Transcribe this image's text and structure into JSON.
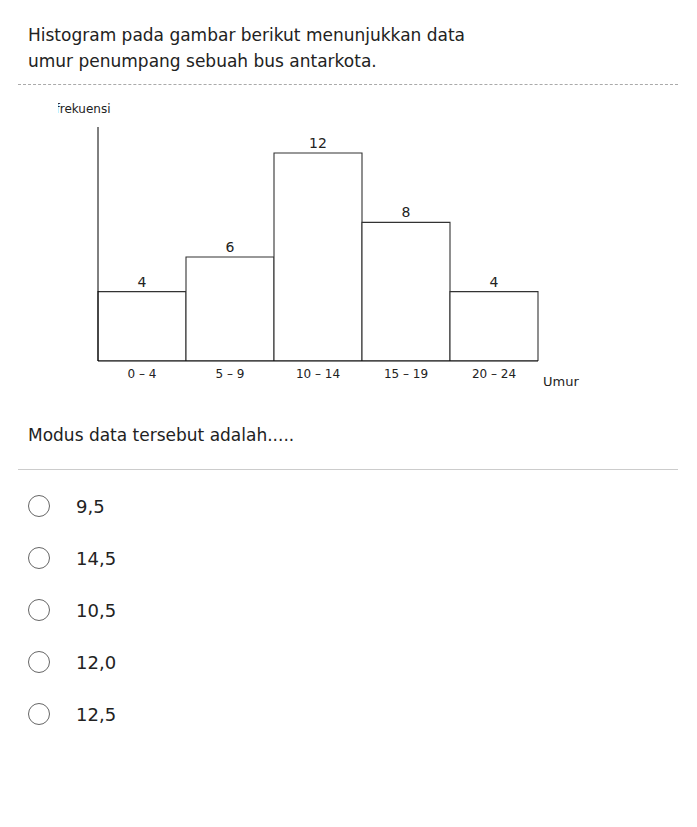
{
  "chart_data": {
    "type": "bar",
    "title": "Histogram pada gambar berikut menunjukkan data",
    "subtitle": "umur penumpang sebuah bus antarkota.",
    "categories": [
      "0 – 4",
      "5 – 9",
      "10 – 14",
      "15 – 19",
      "20 – 24"
    ],
    "values": [
      4,
      6,
      12,
      8,
      4
    ],
    "color": "#ffffff",
    "ylim": [
      0,
      13.5
    ],
    "yticks": [],
    "x_label": "Umur",
    "y_label": "frekuensi",
    "data_labels": true,
    "tick_labels": "x",
    "grid": false,
    "annotations": [
      "Modus data tersebut adalah.....",
      "9,5",
      "14,5",
      "10,5",
      "12,0",
      "12,5"
    ]
  }
}
